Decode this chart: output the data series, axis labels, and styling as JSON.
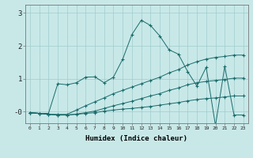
{
  "xlabel": "Humidex (Indice chaleur)",
  "background_color": "#c8e8e8",
  "grid_color": "#a0cccc",
  "line_color": "#1a6b6b",
  "x": [
    0,
    1,
    2,
    3,
    4,
    5,
    6,
    7,
    8,
    9,
    10,
    11,
    12,
    13,
    14,
    15,
    16,
    17,
    18,
    19,
    20,
    21,
    22,
    23
  ],
  "s1": [
    -0.03,
    -0.05,
    -0.05,
    0.85,
    0.82,
    0.88,
    1.05,
    1.06,
    0.88,
    1.05,
    1.6,
    2.35,
    2.78,
    2.62,
    2.3,
    1.88,
    1.75,
    1.22,
    0.78,
    1.35,
    -0.42,
    1.38,
    -0.1,
    -0.1
  ],
  "s2": [
    -0.03,
    -0.05,
    -0.08,
    -0.08,
    -0.08,
    0.05,
    0.18,
    0.3,
    0.42,
    0.55,
    0.65,
    0.75,
    0.85,
    0.95,
    1.05,
    1.18,
    1.28,
    1.42,
    1.52,
    1.6,
    1.65,
    1.68,
    1.72,
    1.72
  ],
  "s3": [
    -0.03,
    -0.05,
    -0.08,
    -0.1,
    -0.1,
    -0.07,
    -0.03,
    0.02,
    0.1,
    0.18,
    0.25,
    0.32,
    0.4,
    0.48,
    0.55,
    0.65,
    0.72,
    0.82,
    0.88,
    0.92,
    0.95,
    0.98,
    1.02,
    1.02
  ],
  "s4": [
    -0.03,
    -0.05,
    -0.08,
    -0.1,
    -0.1,
    -0.08,
    -0.05,
    -0.03,
    0.02,
    0.05,
    0.08,
    0.1,
    0.13,
    0.16,
    0.2,
    0.24,
    0.28,
    0.33,
    0.37,
    0.4,
    0.42,
    0.45,
    0.48,
    0.48
  ],
  "ylim": [
    -0.35,
    3.25
  ],
  "yticks": [
    0,
    1,
    2,
    3
  ],
  "ytick_labels": [
    "-0",
    "1",
    "2",
    "3"
  ],
  "xlim": [
    -0.5,
    23.5
  ]
}
